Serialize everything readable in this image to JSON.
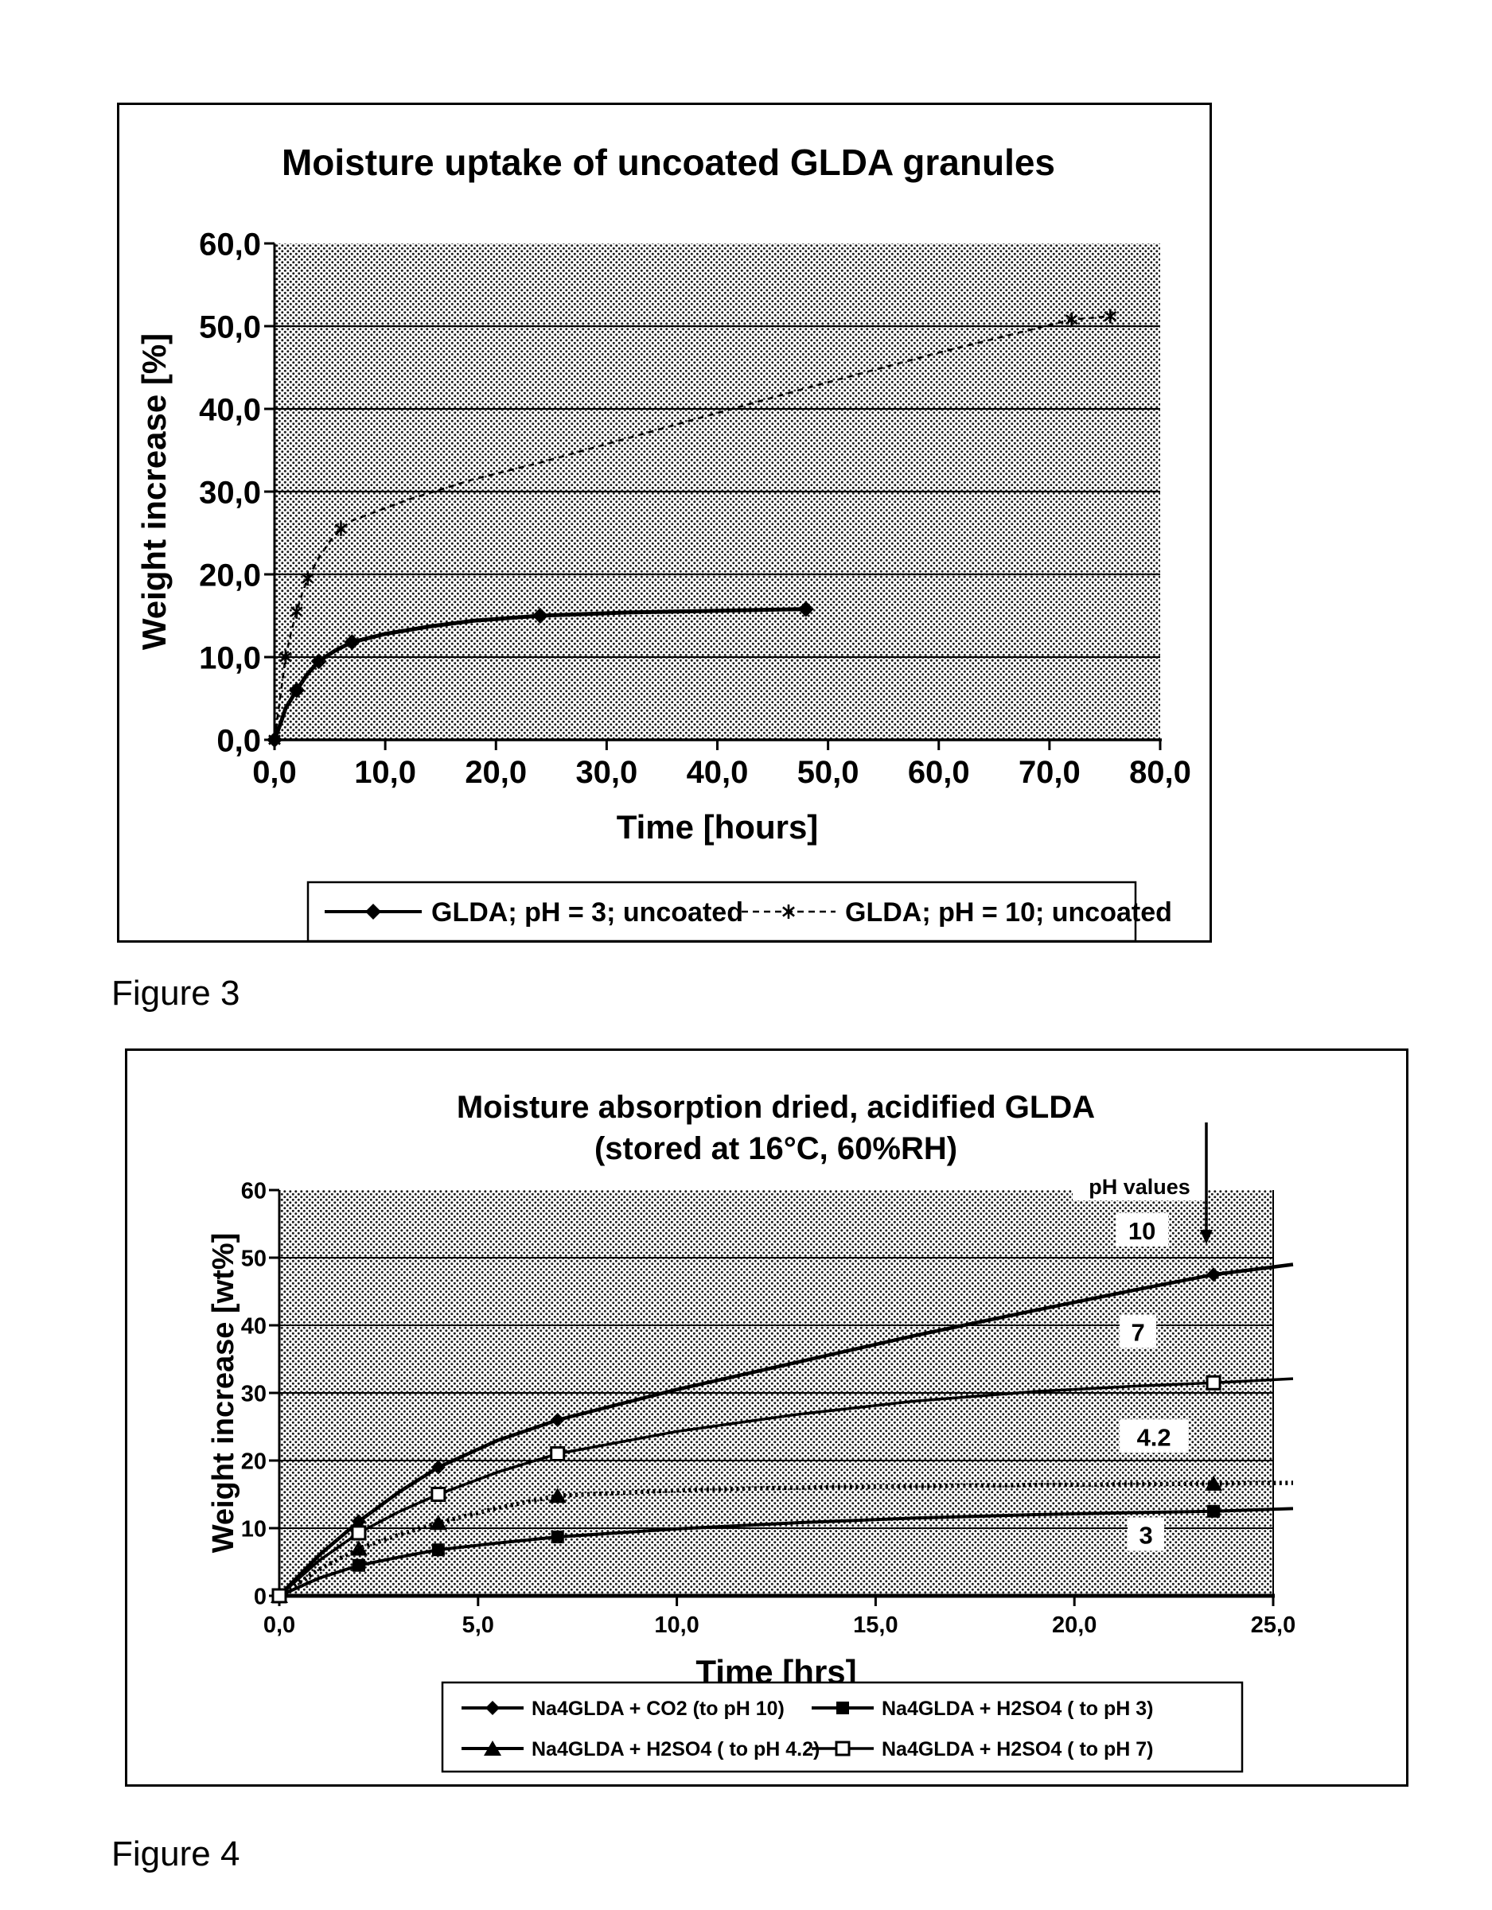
{
  "captions": {
    "figure3": "Figure 3",
    "figure4": "Figure 4"
  },
  "chart_data": [
    {
      "id": "figure3",
      "type": "line",
      "title": "Moisture uptake of uncoated GLDA granules",
      "xlabel": "Time [hours]",
      "ylabel": "Weight increase [%]",
      "xlim": [
        0,
        80
      ],
      "ylim": [
        0,
        60
      ],
      "xticks": [
        "0,0",
        "10,0",
        "20,0",
        "30,0",
        "40,0",
        "50,0",
        "60,0",
        "70,0",
        "80,0"
      ],
      "yticks": [
        "0,0",
        "10,0",
        "20,0",
        "30,0",
        "40,0",
        "50,0",
        "60,0"
      ],
      "gridlines_y": [
        10,
        20,
        30,
        40,
        50
      ],
      "grid": "horizontal",
      "legend_position": "bottom",
      "series": [
        {
          "name": "GLDA; pH = 3; uncoated",
          "marker": "diamond",
          "line_style": "solid",
          "marker_points": [
            [
              0,
              0
            ],
            [
              2,
              6
            ],
            [
              4,
              9.5
            ],
            [
              7,
              11.8
            ],
            [
              24,
              15
            ],
            [
              48,
              15.8
            ]
          ],
          "line_points": [
            [
              0,
              0
            ],
            [
              0.5,
              1.8
            ],
            [
              1,
              3.8
            ],
            [
              2,
              6
            ],
            [
              3,
              8
            ],
            [
              4,
              9.5
            ],
            [
              5.5,
              10.8
            ],
            [
              7,
              11.8
            ],
            [
              10,
              12.8
            ],
            [
              14,
              13.7
            ],
            [
              18,
              14.4
            ],
            [
              24,
              15
            ],
            [
              32,
              15.4
            ],
            [
              40,
              15.6
            ],
            [
              48,
              15.8
            ]
          ]
        },
        {
          "name": "GLDA; pH = 10; uncoated",
          "marker": "star",
          "line_style": "dashed",
          "marker_points": [
            [
              0,
              0
            ],
            [
              1,
              10
            ],
            [
              2,
              15.5
            ],
            [
              3,
              19.5
            ],
            [
              6,
              25.5
            ],
            [
              72,
              50.8
            ],
            [
              75.5,
              51.2
            ]
          ],
          "line_points": [
            [
              0,
              0
            ],
            [
              0.5,
              5
            ],
            [
              1,
              10
            ],
            [
              1.5,
              13
            ],
            [
              2,
              15.5
            ],
            [
              2.5,
              17.7
            ],
            [
              3,
              19.5
            ],
            [
              4,
              22
            ],
            [
              5,
              24
            ],
            [
              6,
              25.5
            ],
            [
              7,
              26.5
            ],
            [
              12,
              29
            ],
            [
              18,
              31.5
            ],
            [
              24,
              33.5
            ],
            [
              36,
              38
            ],
            [
              48,
              42.5
            ],
            [
              60,
              46.8
            ],
            [
              72,
              50.8
            ],
            [
              75.5,
              51.2
            ]
          ]
        }
      ]
    },
    {
      "id": "figure4",
      "type": "line",
      "title": "Moisture absorption dried, acidified GLDA",
      "subtitle": "(stored at 16°C, 60%RH)",
      "xlabel": "Time [hrs]",
      "ylabel": "Weight increase [wt%]",
      "xlim": [
        0,
        25
      ],
      "ylim": [
        0,
        60
      ],
      "xticks": [
        "0,0",
        "5,0",
        "10,0",
        "15,0",
        "20,0",
        "25,0"
      ],
      "yticks": [
        "0",
        "10",
        "20",
        "30",
        "40",
        "50",
        "60"
      ],
      "gridlines_y": [
        10,
        20,
        30,
        40,
        50
      ],
      "grid": "horizontal",
      "legend_position": "bottom",
      "annotation": {
        "text": "pH values"
      },
      "ph_labels": [
        {
          "text": "10",
          "value_x": 21.7,
          "value_y": 54
        },
        {
          "text": "7",
          "value_x": 21.6,
          "value_y": 39
        },
        {
          "text": "4.2",
          "value_x": 22.0,
          "value_y": 23.5
        },
        {
          "text": "3",
          "value_x": 21.8,
          "value_y": 9
        }
      ],
      "series": [
        {
          "name": "Na4GLDA + CO2 (to pH 10)",
          "ph": "10",
          "marker": "diamond",
          "line_style": "solid",
          "marker_points": [
            [
              0,
              0
            ],
            [
              2,
              11
            ],
            [
              4,
              19
            ],
            [
              7,
              26
            ],
            [
              23.5,
              47.5
            ]
          ],
          "line_points": [
            [
              0,
              0
            ],
            [
              1,
              6
            ],
            [
              2,
              11
            ],
            [
              3,
              15.3
            ],
            [
              4,
              19
            ],
            [
              5.5,
              23
            ],
            [
              7,
              26
            ],
            [
              10,
              30.5
            ],
            [
              13,
              34.5
            ],
            [
              16,
              38.5
            ],
            [
              19,
              42.2
            ],
            [
              21.5,
              45.2
            ],
            [
              23.5,
              47.5
            ],
            [
              25.5,
              49
            ]
          ]
        },
        {
          "name": "Na4GLDA  + H2SO4 ( to pH 3)",
          "ph": "3",
          "marker": "square",
          "line_style": "solid",
          "marker_points": [
            [
              0,
              0
            ],
            [
              2,
              4.5
            ],
            [
              4,
              6.8
            ],
            [
              7,
              8.7
            ],
            [
              23.5,
              12.5
            ]
          ],
          "line_points": [
            [
              0,
              0
            ],
            [
              1,
              2.6
            ],
            [
              2,
              4.5
            ],
            [
              3,
              5.7
            ],
            [
              4,
              6.8
            ],
            [
              5.5,
              7.8
            ],
            [
              7,
              8.7
            ],
            [
              10,
              9.9
            ],
            [
              13,
              10.8
            ],
            [
              16,
              11.5
            ],
            [
              19,
              12
            ],
            [
              21.5,
              12.3
            ],
            [
              23.5,
              12.5
            ],
            [
              25.5,
              12.9
            ]
          ]
        },
        {
          "name": "Na4GLDA + H2SO4 ( to pH 4.2)",
          "ph": "4.2",
          "marker": "triangle",
          "line_style": "dotted",
          "marker_points": [
            [
              0,
              0
            ],
            [
              2,
              7
            ],
            [
              4,
              10.8
            ],
            [
              7,
              14.8
            ],
            [
              23.5,
              16.6
            ]
          ],
          "line_points": [
            [
              0,
              0
            ],
            [
              1,
              3.9
            ],
            [
              2,
              7
            ],
            [
              3,
              9
            ],
            [
              4,
              10.8
            ],
            [
              5.5,
              13
            ],
            [
              7,
              14.8
            ],
            [
              10,
              15.6
            ],
            [
              13,
              16
            ],
            [
              16,
              16.2
            ],
            [
              19,
              16.4
            ],
            [
              21.5,
              16.5
            ],
            [
              23.5,
              16.6
            ],
            [
              25.5,
              16.7
            ]
          ]
        },
        {
          "name": "Na4GLDA  + H2SO4 ( to pH 7)",
          "ph": "7",
          "marker": "square-open",
          "line_style": "solid",
          "marker_points": [
            [
              0,
              0
            ],
            [
              2,
              9.3
            ],
            [
              4,
              15
            ],
            [
              7,
              21
            ],
            [
              23.5,
              31.5
            ]
          ],
          "line_points": [
            [
              0,
              0
            ],
            [
              1,
              5.2
            ],
            [
              2,
              9.3
            ],
            [
              3,
              12.4
            ],
            [
              4,
              15
            ],
            [
              5.5,
              18.3
            ],
            [
              7,
              21
            ],
            [
              10,
              24.3
            ],
            [
              13,
              26.8
            ],
            [
              16,
              28.8
            ],
            [
              19,
              30.2
            ],
            [
              21.5,
              31
            ],
            [
              23.5,
              31.5
            ],
            [
              25.5,
              32.1
            ]
          ]
        }
      ]
    }
  ]
}
